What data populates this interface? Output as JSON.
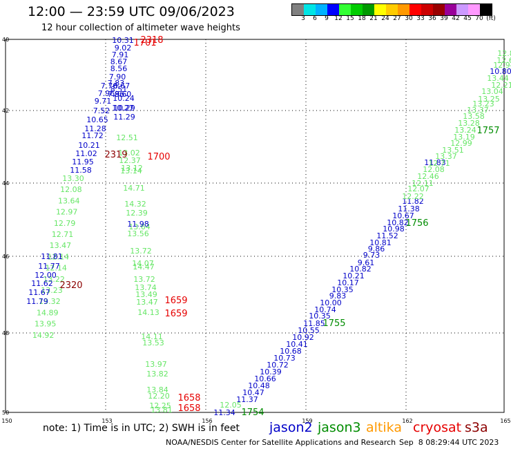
{
  "title": "12:00 — 23:59 UTC 09/06/2023",
  "subtitle": "12 hour collection of altimeter wave heights",
  "colorbar": {
    "colors": [
      "#808080",
      "#00e5e5",
      "#00b2ff",
      "#0000ff",
      "#33ff33",
      "#00cc00",
      "#009900",
      "#ffff00",
      "#ffcc00",
      "#ff9900",
      "#ff0000",
      "#cc0000",
      "#990000",
      "#990099",
      "#cc99ff",
      "#ff99ff",
      "#000000"
    ],
    "labels": [
      "3",
      "6",
      "9",
      "12",
      "15",
      "18",
      "21",
      "24",
      "27",
      "30",
      "33",
      "36",
      "39",
      "42",
      "45",
      "70",
      "(ft)"
    ]
  },
  "axes": {
    "lat_labels": [
      "40",
      "42",
      "44",
      "46",
      "48",
      "50"
    ],
    "lon_labels": [
      "150",
      "153",
      "156",
      "159",
      "162",
      "165"
    ]
  },
  "colors": {
    "jason2": "#0000c8",
    "jason3": "#008c00",
    "altika": "#ff9900",
    "cryosat": "#e60000",
    "s3a": "#8c0000",
    "light": "#66e666",
    "green": "#008c00"
  },
  "tracks": {
    "west_light": [
      "13.30",
      "12.08",
      "13.64",
      "12.97",
      "12.79",
      "12.71",
      "13.47",
      "12.14",
      "12.14",
      "13.22",
      "13.23",
      "13.32",
      "14.89",
      "13.95",
      "14.92"
    ],
    "west_blue": [
      "9.02",
      "7.91",
      "8.67",
      "8.56",
      "7.90",
      "7.83",
      "8.67",
      "8.51",
      "7.96",
      "8.60",
      "7.76",
      "7.96",
      "10.24",
      "9.71",
      "10.27",
      "7.52",
      "11.29",
      "10.65",
      "11.28",
      "11.72",
      "10.21",
      "11.02",
      "11.95",
      "11.58",
      "11.81",
      "11.77",
      "12.00",
      "11.62",
      "11.67",
      "11.79"
    ],
    "blue_top": "10.31",
    "mid_light": [
      "12.51",
      "13.02",
      "12.37",
      "13.14",
      "13.12",
      "14.71",
      "14.32",
      "12.39",
      "13.64",
      "13.56",
      "13.72",
      "14.07",
      "14.47",
      "13.72",
      "13.74",
      "13.49",
      "13.47",
      "14.13",
      "14.11",
      "13.53",
      "13.97",
      "13.82",
      "13.84",
      "12.20",
      "12.25",
      "13.81"
    ],
    "mid_blue": [
      "10.29",
      "11.98"
    ],
    "east_blue": [
      "10.80",
      "11.83",
      "11.82",
      "11.38",
      "10.67",
      "10.82",
      "10.98",
      "11.52",
      "10.81",
      "9.86",
      "9.73",
      "9.61",
      "10.82",
      "10.21",
      "10.17",
      "10.35",
      "9.83",
      "10.00",
      "10.74",
      "10.35",
      "11.85",
      "10.55",
      "10.92",
      "10.41",
      "10.68",
      "10.73",
      "10.72",
      "10.39",
      "10.66",
      "10.48",
      "10.47",
      "11.37",
      "11.34"
    ],
    "east_light": [
      "12.84",
      "12.68",
      "12.94",
      "12.21",
      "13.44",
      "13.04",
      "13.25",
      "13.23",
      "13.37",
      "13.58",
      "13.28",
      "13.24",
      "13.19",
      "12.99",
      "13.51",
      "13.37",
      "12.71",
      "12.08",
      "12.46",
      "12.11",
      "12.07",
      "12.22",
      "12.05"
    ],
    "time_labels": [
      {
        "text": "2318",
        "kind": "cryosat"
      },
      {
        "text": "1701",
        "kind": "cryosat"
      },
      {
        "text": "2319",
        "kind": "s3a"
      },
      {
        "text": "1700",
        "kind": "cryosat"
      },
      {
        "text": "2320",
        "kind": "s3a"
      },
      {
        "text": "1659",
        "kind": "cryosat"
      },
      {
        "text": "1659",
        "kind": "cryosat"
      },
      {
        "text": "1658",
        "kind": "cryosat"
      },
      {
        "text": "1658",
        "kind": "cryosat"
      },
      {
        "text": "1757",
        "kind": "green"
      },
      {
        "text": "1756",
        "kind": "green"
      },
      {
        "text": "1755",
        "kind": "green"
      },
      {
        "text": "1754",
        "kind": "green"
      }
    ]
  },
  "note": "note:  1) Time is in UTC;  2) SWH is in feet",
  "legend": [
    {
      "name": "jason2",
      "color": "#0000c8"
    },
    {
      "name": "jason3",
      "color": "#008c00"
    },
    {
      "name": "altika",
      "color": "#ff9900"
    },
    {
      "name": "cryosat",
      "color": "#e60000"
    },
    {
      "name": "s3a",
      "color": "#8c0000"
    }
  ],
  "footer": "NOAA/NESDIS Center for Satellite Applications and Research",
  "footer_time": "Sep  8 08:29:44 UTC 2023"
}
